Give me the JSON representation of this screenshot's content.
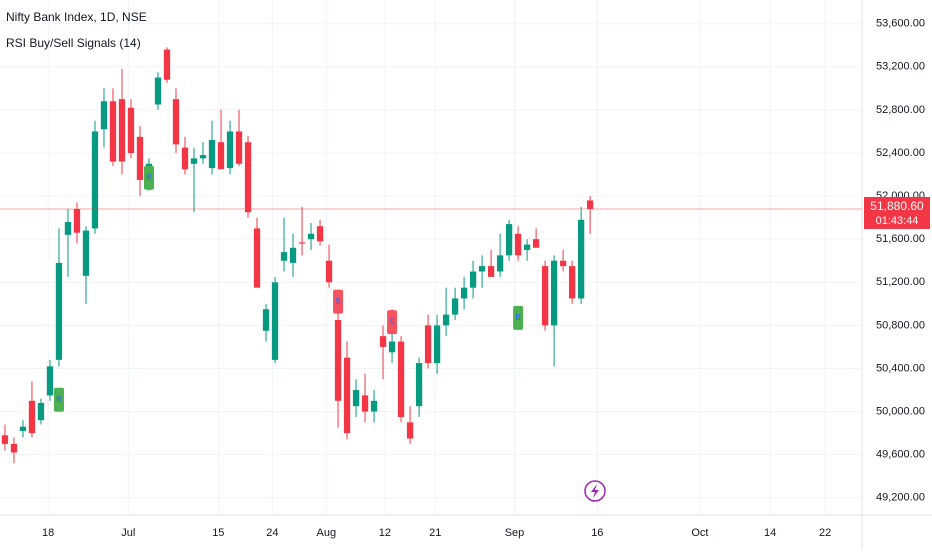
{
  "chart_data": {
    "type": "candlestick",
    "title": "Nifty Bank Index, 1D, NSE",
    "subtitle": "RSI Buy/Sell Signals (14)",
    "up_color": "#089981",
    "down_color": "#f23645",
    "x": [
      0,
      1,
      2,
      3,
      4,
      5,
      6,
      7,
      8,
      9,
      10,
      11,
      12,
      13,
      14,
      15,
      16,
      17,
      18,
      19,
      20,
      21,
      22,
      23,
      24,
      25,
      26,
      27,
      28,
      29,
      30,
      31,
      32,
      33,
      34,
      35,
      36,
      37,
      38,
      39,
      40,
      41,
      42,
      43,
      44,
      45,
      46,
      47,
      48,
      49,
      50,
      51,
      52,
      53,
      54,
      55,
      56,
      57,
      58,
      59,
      60,
      61,
      62,
      63,
      64,
      65
    ],
    "open": [
      49780,
      49700,
      49820,
      50100,
      49920,
      50150,
      50480,
      51640,
      51880,
      51260,
      51700,
      52620,
      52880,
      52900,
      52820,
      52550,
      52150,
      52850,
      53360,
      52900,
      52450,
      52300,
      52350,
      52260,
      52500,
      52260,
      52600,
      52500,
      51700,
      50750,
      50480,
      51400,
      51380,
      51570,
      51600,
      51720,
      51400,
      50850,
      50500,
      50050,
      50150,
      50000,
      50700,
      50550,
      50650,
      49900,
      50050,
      50800,
      50450,
      50800,
      50900,
      51050,
      51150,
      51300,
      51350,
      51300,
      51450,
      51650,
      51500,
      51600,
      51350,
      50800,
      51400,
      51350,
      51050,
      51960
    ],
    "high": [
      49880,
      49760,
      49920,
      50280,
      50120,
      50480,
      51700,
      51880,
      51940,
      51720,
      52700,
      53000,
      53000,
      53180,
      52900,
      52650,
      52350,
      53150,
      53380,
      53000,
      52550,
      52450,
      52500,
      52700,
      52800,
      52700,
      52800,
      52560,
      51800,
      51000,
      51250,
      51800,
      51650,
      51900,
      51750,
      51780,
      51550,
      51100,
      50650,
      50300,
      50350,
      50200,
      50800,
      50950,
      50700,
      50050,
      50500,
      50900,
      50900,
      51150,
      51150,
      51250,
      51400,
      51450,
      51500,
      51650,
      51780,
      51720,
      51600,
      51700,
      51400,
      51450,
      51500,
      51400,
      51900,
      52000
    ],
    "low": [
      49640,
      49520,
      49760,
      49760,
      49880,
      50100,
      50420,
      51250,
      51560,
      51000,
      51650,
      52450,
      52280,
      52200,
      52350,
      52000,
      52050,
      52800,
      53050,
      52400,
      52200,
      51850,
      52300,
      52200,
      52250,
      52200,
      52280,
      51800,
      51150,
      50650,
      50450,
      51300,
      51250,
      51450,
      51500,
      51540,
      51150,
      49850,
      49740,
      49950,
      49900,
      49900,
      50300,
      50450,
      49900,
      49700,
      49950,
      50400,
      50350,
      50700,
      50850,
      50950,
      51050,
      51150,
      51250,
      51250,
      51400,
      51400,
      51400,
      51550,
      50750,
      50420,
      51300,
      51000,
      51000,
      51650
    ],
    "close": [
      49700,
      49620,
      49860,
      49800,
      50080,
      50420,
      51380,
      51760,
      51660,
      51680,
      52600,
      52880,
      52320,
      52320,
      52400,
      52150,
      52300,
      53100,
      53080,
      52480,
      52250,
      52350,
      52380,
      52520,
      52250,
      52600,
      52300,
      51850,
      51150,
      50950,
      51200,
      51480,
      51520,
      51560,
      51650,
      51580,
      51200,
      50100,
      49800,
      50200,
      50000,
      50100,
      50600,
      50650,
      49950,
      49750,
      50450,
      50450,
      50800,
      50900,
      51050,
      51150,
      51300,
      51350,
      51250,
      51450,
      51740,
      51450,
      51550,
      51520,
      50800,
      51400,
      51350,
      51050,
      51780,
      51880.6
    ],
    "signals": [
      {
        "x": 6,
        "y": 50110,
        "label": "B",
        "color": "#4caf50"
      },
      {
        "x": 16,
        "y": 52170,
        "label": "B",
        "color": "#4caf50"
      },
      {
        "x": 37,
        "y": 51020,
        "label": "S",
        "color": "#f7525f"
      },
      {
        "x": 43,
        "y": 50830,
        "label": "S",
        "color": "#f7525f"
      },
      {
        "x": 57,
        "y": 50870,
        "label": "B",
        "color": "#4caf50"
      }
    ],
    "price_line": {
      "value": 51880.6,
      "label": "51,880.60",
      "countdown": "01:43:44",
      "color": "#f23645"
    },
    "xlim": [
      -0.55,
      95.2
    ],
    "ylim": [
      49040,
      53820
    ],
    "xticks": [
      {
        "value": 4.8,
        "label": "18"
      },
      {
        "value": 13.7,
        "label": "Jul"
      },
      {
        "value": 23.7,
        "label": "15"
      },
      {
        "value": 29.7,
        "label": "24"
      },
      {
        "value": 35.7,
        "label": "Aug"
      },
      {
        "value": 42.2,
        "label": "12"
      },
      {
        "value": 47.8,
        "label": "21"
      },
      {
        "value": 56.6,
        "label": "Sep"
      },
      {
        "value": 65.8,
        "label": "16"
      },
      {
        "value": 77.2,
        "label": "Oct"
      },
      {
        "value": 85,
        "label": "14"
      },
      {
        "value": 91.1,
        "label": "22"
      }
    ],
    "yticks": [
      {
        "value": 53600,
        "label": "53,600.00"
      },
      {
        "value": 53200,
        "label": "53,200.00"
      },
      {
        "value": 52800,
        "label": "52,800.00"
      },
      {
        "value": 52400,
        "label": "52,400.00"
      },
      {
        "value": 52000,
        "label": "52,000.00"
      },
      {
        "value": 51600,
        "label": "51,600.00"
      },
      {
        "value": 51200,
        "label": "51,200.00"
      },
      {
        "value": 50800,
        "label": "50,800.00"
      },
      {
        "value": 50400,
        "label": "50,400.00"
      },
      {
        "value": 50000,
        "label": "50,000.00"
      },
      {
        "value": 49600,
        "label": "49,600.00"
      },
      {
        "value": 49200,
        "label": "49,200.00"
      }
    ],
    "grid": true
  }
}
